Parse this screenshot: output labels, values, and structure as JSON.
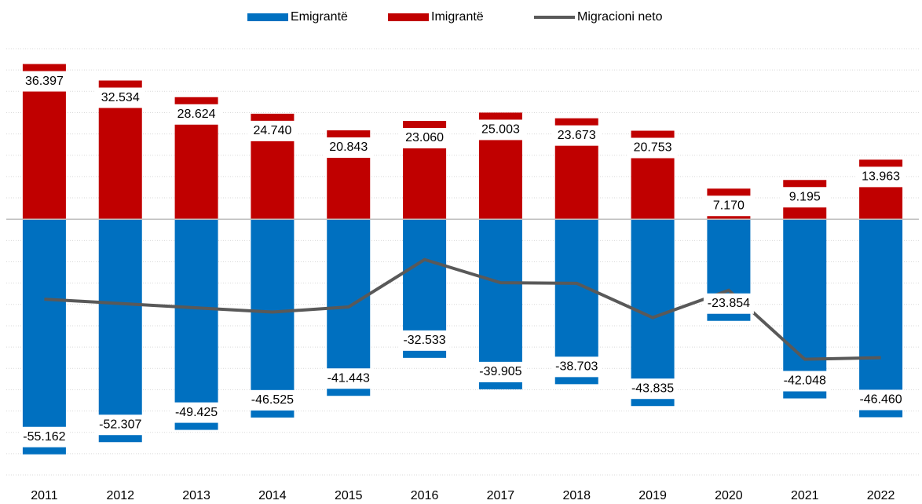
{
  "chart_data": {
    "type": "bar",
    "categories": [
      "2011",
      "2012",
      "2013",
      "2014",
      "2015",
      "2016",
      "2017",
      "2018",
      "2019",
      "2020",
      "2021",
      "2022"
    ],
    "series": [
      {
        "name": "Emigrantë",
        "color": "#0070c0",
        "values": [
          -55162,
          -52307,
          -49425,
          -46525,
          -41443,
          -32533,
          -39905,
          -38703,
          -43835,
          -23854,
          -42048,
          -46460
        ],
        "value_labels": [
          "-55.162",
          "-52.307",
          "-49.425",
          "-46.525",
          "-41.443",
          "-32.533",
          "-39.905",
          "-38.703",
          "-43.835",
          "-23.854",
          "-42.048",
          "-46.460"
        ]
      },
      {
        "name": "Imigrantë",
        "color": "#c00000",
        "values": [
          36397,
          32534,
          28624,
          24740,
          20843,
          23060,
          25003,
          23673,
          20753,
          7170,
          9195,
          13963
        ],
        "value_labels": [
          "36.397",
          "32.534",
          "28.624",
          "24.740",
          "20.843",
          "23.060",
          "25.003",
          "23.673",
          "20.753",
          "7.170",
          "9.195",
          "13.963"
        ]
      },
      {
        "name": "Migracioni neto",
        "color": "#595959",
        "type": "line",
        "values": [
          -18765,
          -19773,
          -20801,
          -21785,
          -20600,
          -9473,
          -14902,
          -15030,
          -23082,
          -16684,
          -32853,
          -32497
        ]
      }
    ],
    "ylim": [
      -60000,
      40000
    ],
    "yticks": [
      -60000,
      -55000,
      -50000,
      -45000,
      -40000,
      -35000,
      -30000,
      -25000,
      -20000,
      -15000,
      -10000,
      -5000,
      0,
      5000,
      10000,
      15000,
      20000,
      25000,
      30000,
      35000,
      40000
    ],
    "grid": true
  }
}
